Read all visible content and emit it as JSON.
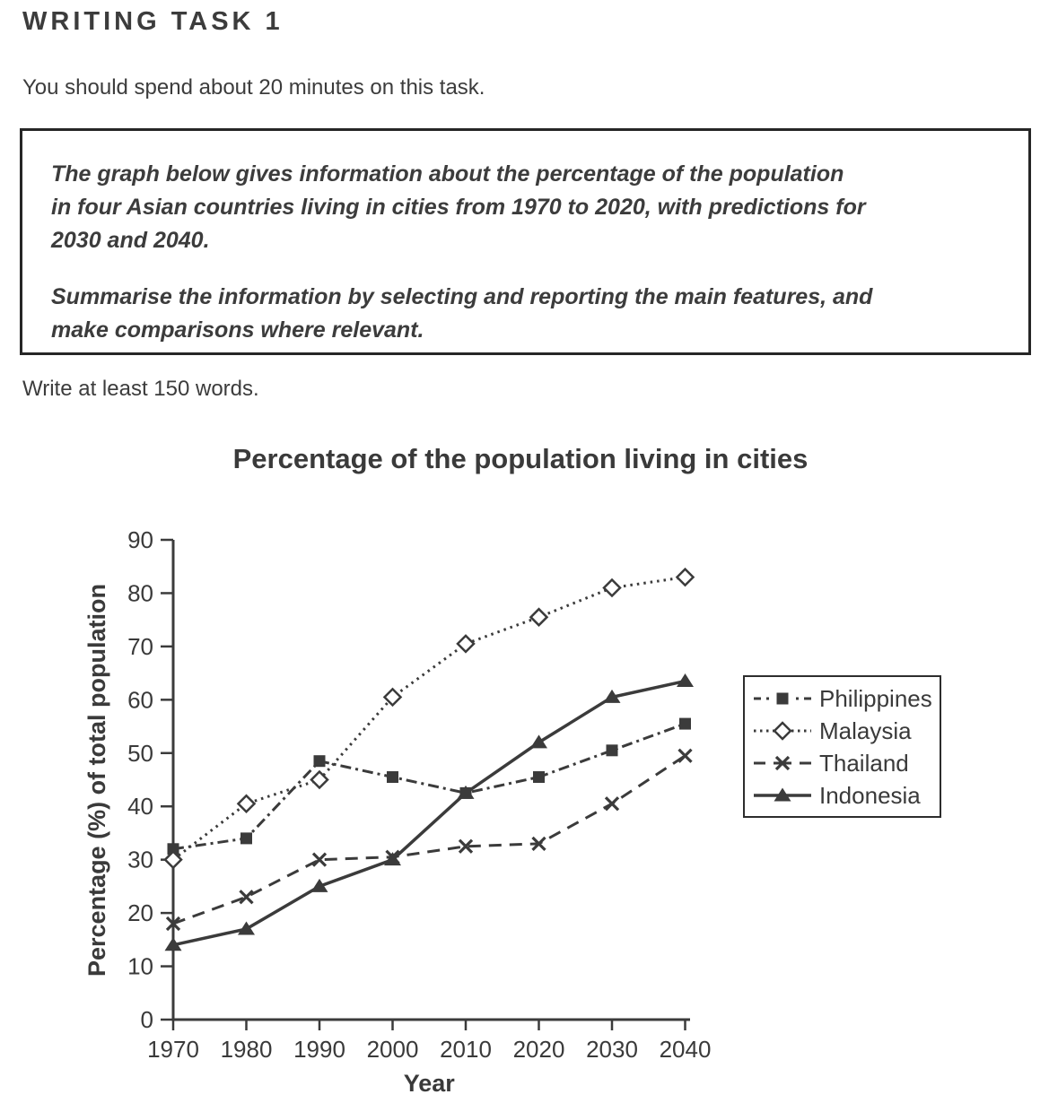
{
  "page": {
    "heading": "WRITING TASK 1",
    "time_note": "You should spend about 20 minutes on this task.",
    "task_box": {
      "paragraph1": "The graph below gives information about the percentage of the population\nin four Asian countries living in cities from 1970 to 2020, with predictions for\n2030 and 2040.",
      "paragraph2": "Summarise the information by selecting and reporting the main features, and\nmake comparisons where relevant."
    },
    "word_count_note": "Write at least 150 words."
  },
  "chart_data": {
    "type": "line",
    "title": "Percentage of the population living in cities",
    "xlabel": "Year",
    "ylabel": "Percentage (%) of total population",
    "x": [
      1970,
      1980,
      1990,
      2000,
      2010,
      2020,
      2030,
      2040
    ],
    "ylim": [
      0,
      90
    ],
    "ytick_step": 10,
    "grid": false,
    "legend_position": "right",
    "ink_color": "#3b3b3b",
    "series": [
      {
        "name": "Philippines",
        "line": "dash-dot",
        "marker": "square-filled",
        "values": [
          32,
          34,
          48.5,
          45.5,
          42.5,
          45.5,
          50.5,
          55.5
        ]
      },
      {
        "name": "Malaysia",
        "line": "dotted",
        "marker": "diamond-open",
        "values": [
          30,
          40.5,
          45,
          60.5,
          70.5,
          75.5,
          81,
          83
        ]
      },
      {
        "name": "Thailand",
        "line": "dashed",
        "marker": "x",
        "values": [
          18,
          23,
          30,
          30.5,
          32.5,
          33,
          40.5,
          49.5
        ]
      },
      {
        "name": "Indonesia",
        "line": "solid",
        "marker": "triangle-filled",
        "values": [
          14,
          17,
          25,
          30,
          42.5,
          52,
          60.5,
          63.5
        ]
      }
    ]
  }
}
